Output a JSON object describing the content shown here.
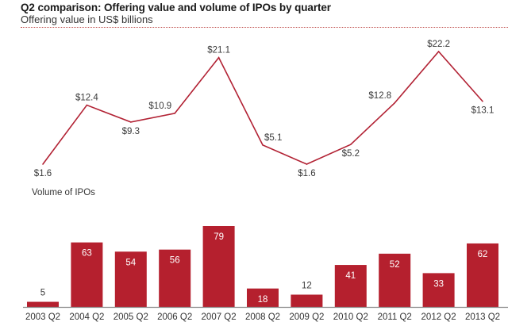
{
  "header": {
    "title": "Q2 comparison: Offering value and volume of IPOs by quarter",
    "subtitle": "Offering value in US$ billions"
  },
  "colors": {
    "line": "#b22234",
    "bar": "#b5202e",
    "rule": "#c0504d",
    "axis": "#888888"
  },
  "chart_data": [
    {
      "type": "line",
      "title": "Offering value in US$ billions",
      "categories": [
        "2003 Q2",
        "2004 Q2",
        "2005 Q2",
        "2006 Q2",
        "2007 Q2",
        "2008 Q2",
        "2009 Q2",
        "2010 Q2",
        "2011 Q2",
        "2012 Q2",
        "2013 Q2"
      ],
      "values": [
        1.6,
        12.4,
        9.3,
        10.9,
        21.1,
        5.1,
        1.6,
        5.2,
        12.8,
        22.2,
        13.1
      ],
      "labels": [
        "$1.6",
        "$12.4",
        "$9.3",
        "$10.9",
        "$21.1",
        "$5.1",
        "$1.6",
        "$5.2",
        "$12.8",
        "$22.2",
        "$13.1"
      ],
      "ylim": [
        0,
        23
      ],
      "grid": false
    },
    {
      "type": "bar",
      "title": "Volume of IPOs",
      "categories": [
        "2003 Q2",
        "2004 Q2",
        "2005 Q2",
        "2006 Q2",
        "2007 Q2",
        "2008 Q2",
        "2009 Q2",
        "2010 Q2",
        "2011 Q2",
        "2012 Q2",
        "2013 Q2"
      ],
      "values": [
        5,
        63,
        54,
        56,
        79,
        18,
        12,
        41,
        52,
        33,
        62
      ],
      "ylim": [
        0,
        80
      ],
      "grid": false
    }
  ]
}
